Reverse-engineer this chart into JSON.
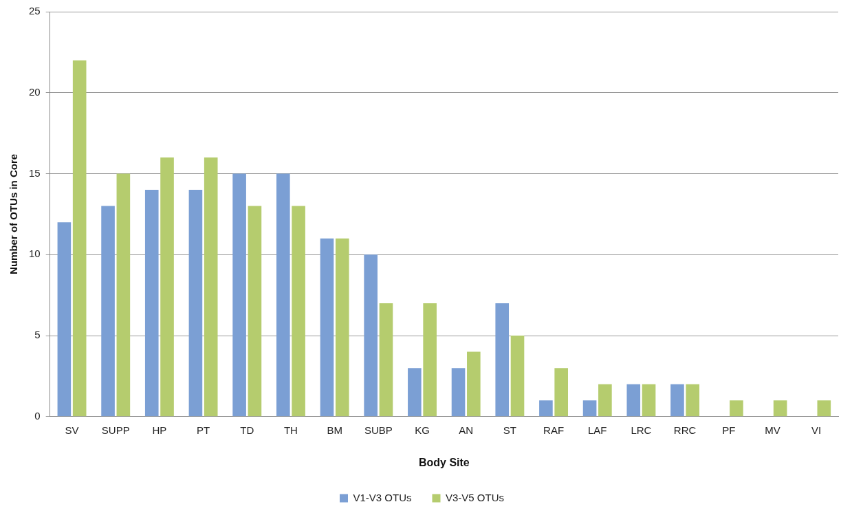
{
  "chart_data": {
    "type": "bar",
    "xlabel": "Body Site",
    "ylabel": "Number of OTUs in Core",
    "categories": [
      "SV",
      "SUPP",
      "HP",
      "PT",
      "TD",
      "TH",
      "BM",
      "SUBP",
      "KG",
      "AN",
      "ST",
      "RAF",
      "LAF",
      "LRC",
      "RRC",
      "PF",
      "MV",
      "VI"
    ],
    "series": [
      {
        "name": "V1-V3 OTUs",
        "color": "#7b9fd4",
        "values": [
          12,
          13,
          14,
          14,
          15,
          15,
          11,
          10,
          3,
          3,
          7,
          1,
          1,
          2,
          2,
          0,
          0,
          0
        ]
      },
      {
        "name": "V3-V5 OTUs",
        "color": "#b5cc6e",
        "values": [
          22,
          15,
          16,
          16,
          13,
          13,
          11,
          7,
          7,
          4,
          5,
          3,
          2,
          2,
          2,
          1,
          1,
          1
        ]
      }
    ],
    "ylim": [
      0,
      25
    ],
    "yticks": [
      0,
      5,
      10,
      15,
      20,
      25
    ],
    "grid": "y",
    "legend": "bottom"
  }
}
